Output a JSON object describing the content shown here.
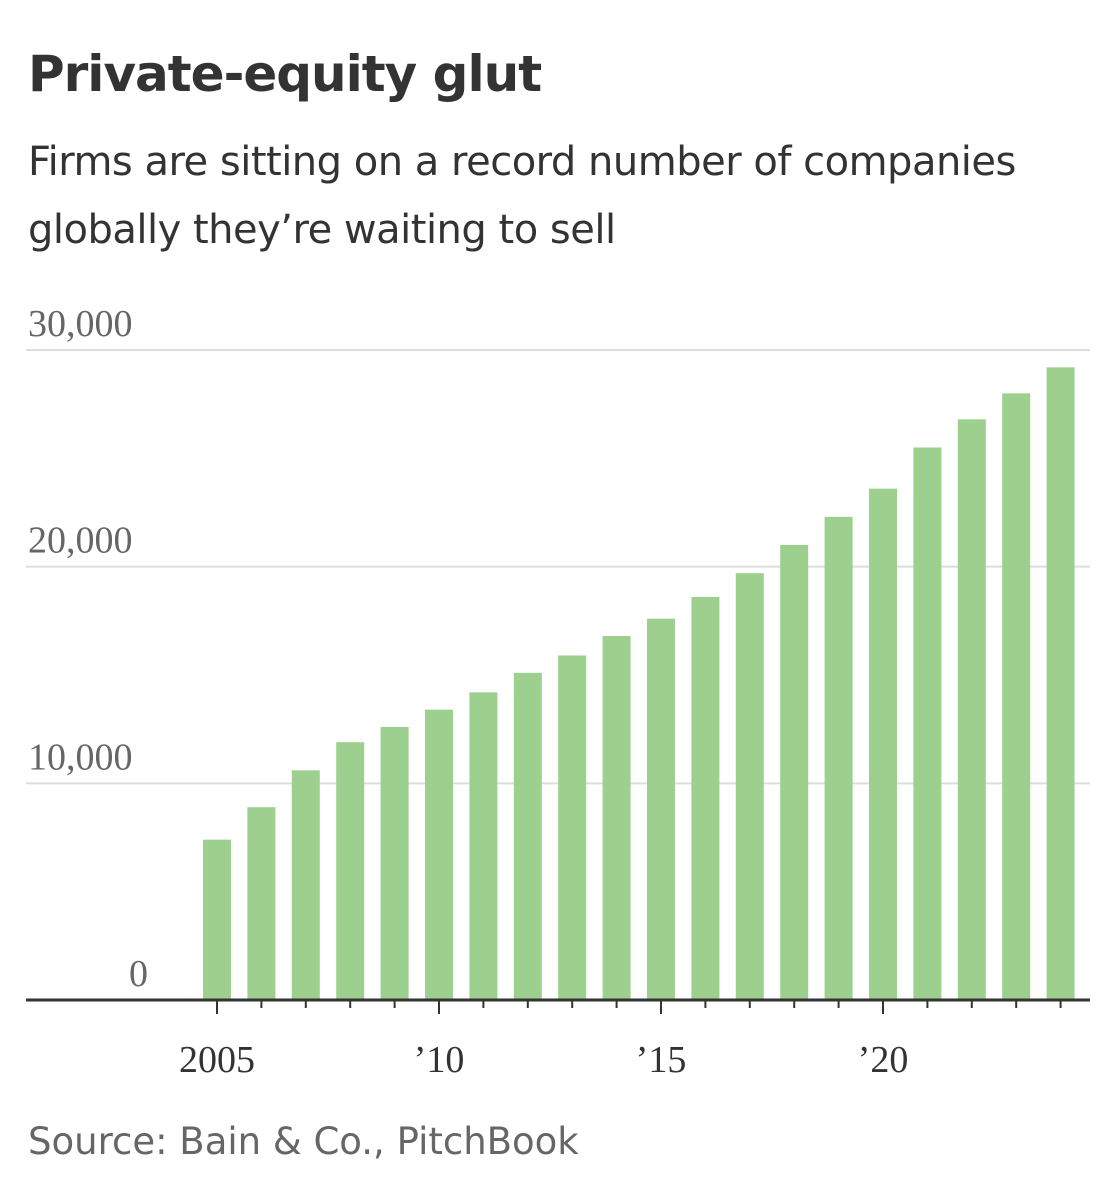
{
  "title": "Private-equity glut",
  "subtitle": "Firms are sitting on a record number of companies globally they’re waiting to sell",
  "source": "Source: Bain & Co., PitchBook",
  "colors": {
    "bar": "#9dd08e",
    "grid": "#dddddd",
    "axis": "#333333"
  },
  "chart_data": {
    "type": "bar",
    "title": "Private-equity glut",
    "subtitle": "Firms are sitting on a record number of companies globally they’re waiting to sell",
    "xlabel": "",
    "ylabel": "",
    "ylim": [
      0,
      30000
    ],
    "yticks": [
      0,
      10000,
      20000,
      30000
    ],
    "ytick_labels": [
      "0",
      "10,000",
      "20,000",
      "30,000"
    ],
    "xticks": [
      2005,
      2010,
      2015,
      2020
    ],
    "xtick_labels": [
      "2005",
      "’10",
      "’15",
      "’20"
    ],
    "categories": [
      2005,
      2006,
      2007,
      2008,
      2009,
      2010,
      2011,
      2012,
      2013,
      2014,
      2015,
      2016,
      2017,
      2018,
      2019,
      2020,
      2021,
      2022,
      2023,
      2024
    ],
    "values": [
      7400,
      8900,
      10600,
      11900,
      12600,
      13400,
      14200,
      15100,
      15900,
      16800,
      17600,
      18600,
      19700,
      21000,
      22300,
      23600,
      25500,
      26800,
      28000,
      29200
    ],
    "grid": true
  }
}
